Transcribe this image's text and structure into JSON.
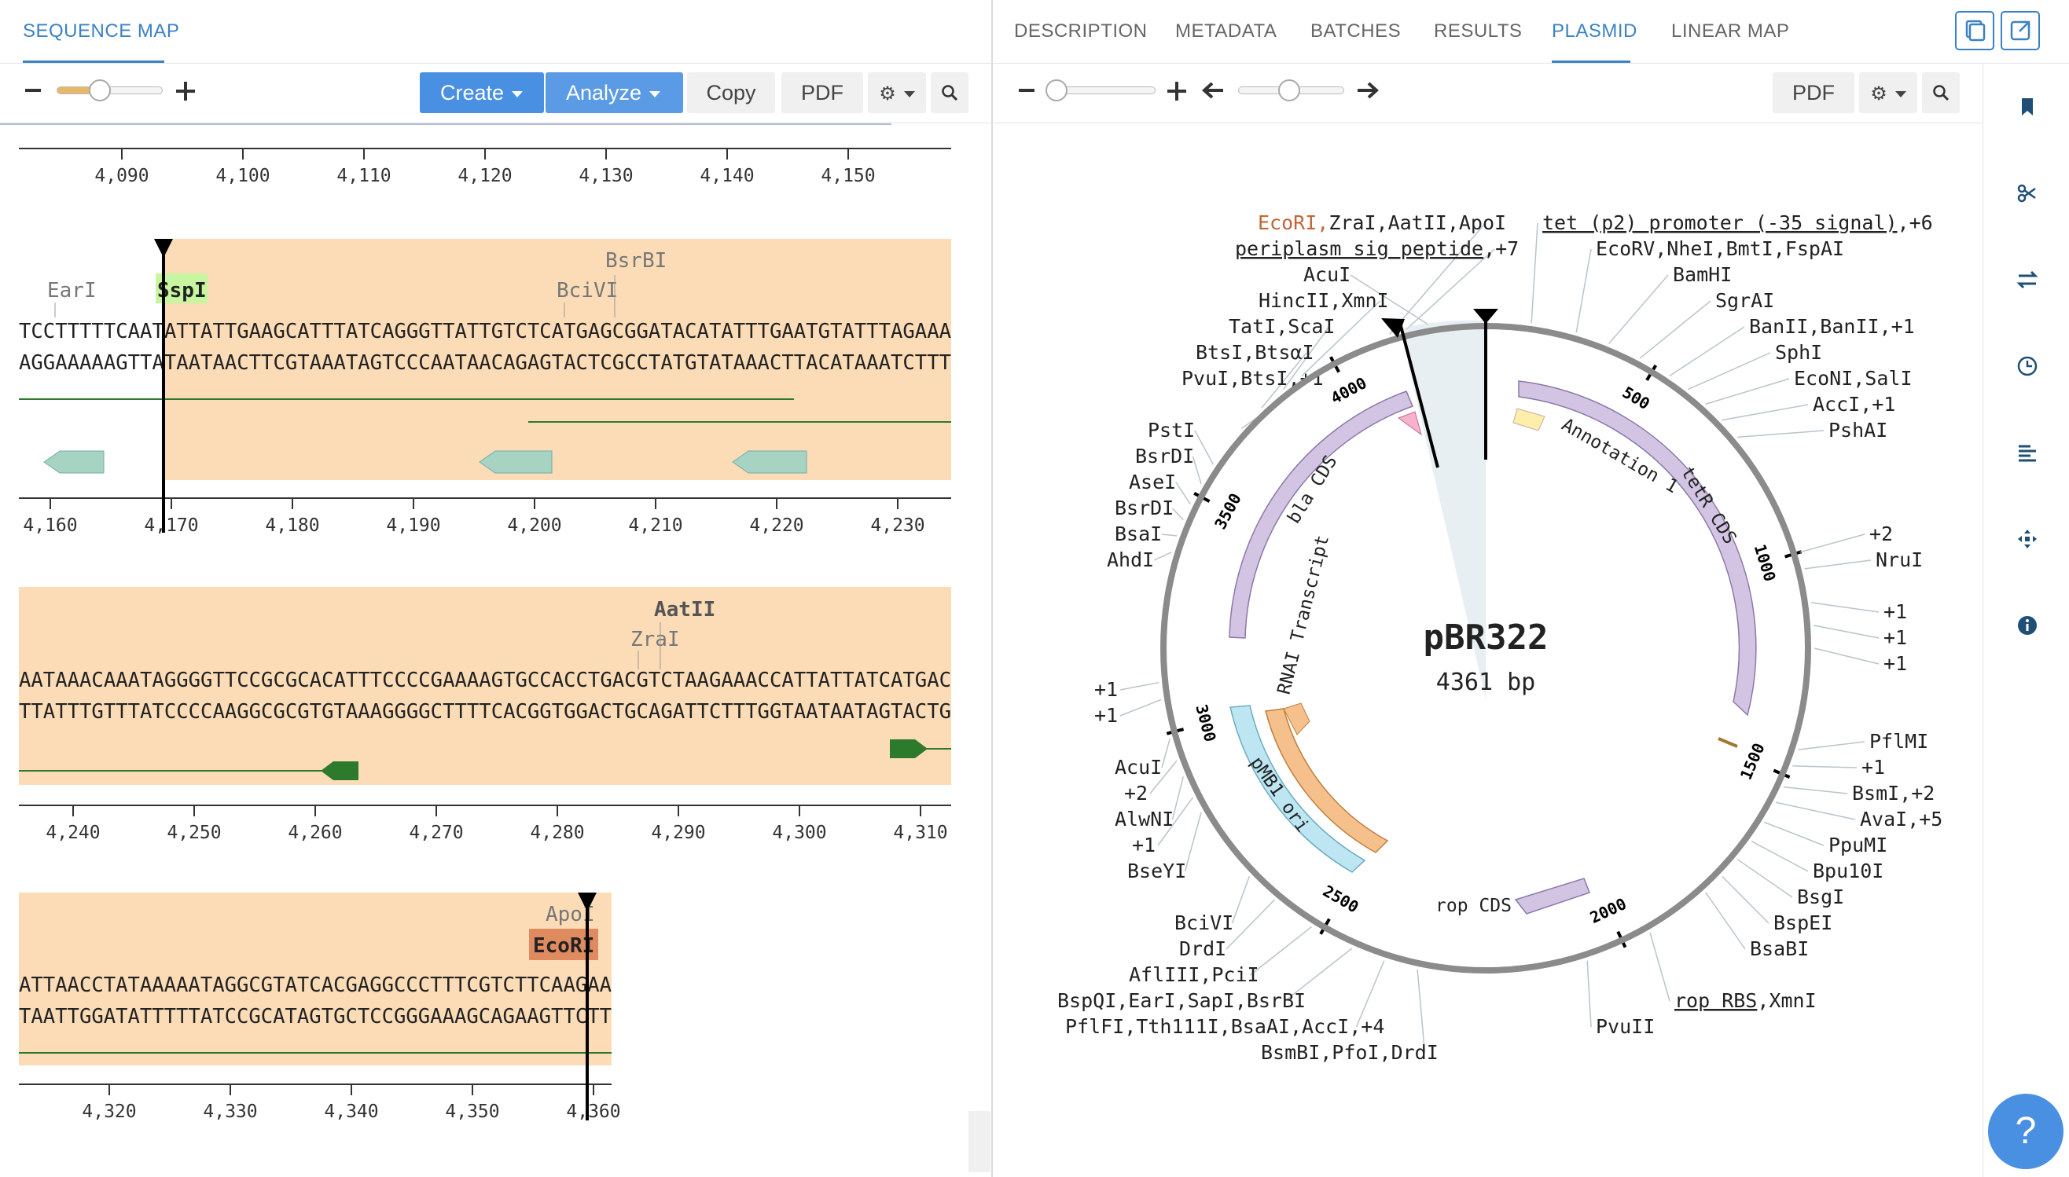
{
  "left_panel": {
    "tab": "SEQUENCE MAP",
    "toolbar": {
      "create": "Create",
      "analyze": "Analyze",
      "copy": "Copy",
      "pdf": "PDF"
    },
    "ticks_row1": [
      "4,090",
      "4,100",
      "4,110",
      "4,120",
      "4,130",
      "4,140",
      "4,150"
    ],
    "ticks_row2": [
      "4,160",
      "4,170",
      "4,180",
      "4,190",
      "4,200",
      "4,210",
      "4,220",
      "4,230"
    ],
    "ticks_row3": [
      "4,240",
      "4,250",
      "4,260",
      "4,270",
      "4,280",
      "4,290",
      "4,300",
      "4,310"
    ],
    "ticks_row4": [
      "4,320",
      "4,330",
      "4,340",
      "4,350",
      "4,360"
    ],
    "row2": {
      "top": "TCCTTTTTCAATATTATTGAAGCATTTATCAGGGTTATTGTCTCATGAGCGGATACATATTTGAATGTATTTAGAAA",
      "bottom": "AGGAAAAAGTTATAATAACTTCGTAAATAGTCCCAATAACAGAGTACTCGCCTATGTATAAACTTACATAAATCTTT",
      "enzymes": [
        "EarI",
        "SspI",
        "BciVI",
        "BsrBI"
      ]
    },
    "row3": {
      "top": "AATAAACAAATAGGGGTTCCGCGCACATTTCCCCGAAAAGTGCCACCTGACGTCTAAGAAACCATTATTATCATGAC",
      "bottom": "TTATTTGTTTATCCCCAAGGCGCGTGTAAAGGGGCTTTTCACGGTGGACTGCAGATTCTTTGGTAATAATAGTACTG",
      "enzymes": [
        "AatII",
        "ZraI"
      ]
    },
    "row4": {
      "top": "ATTAACCTATAAAAATAGGCGTATCACGAGGCCCTTTCGTCTTCAAGAA",
      "bottom": "TAATTGGATATTTTTATCCGCATAGTGCTCCGGGAAAGCAGAAGTTCTT",
      "enzymes": [
        "ApoI",
        "EcoRI"
      ]
    }
  },
  "right_panel": {
    "tabs": [
      "DESCRIPTION",
      "METADATA",
      "BATCHES",
      "RESULTS",
      "PLASMID",
      "LINEAR MAP"
    ],
    "active_tab": "PLASMID",
    "pdf": "PDF",
    "plasmid": {
      "name": "pBR322",
      "length": "4361 bp"
    },
    "features": [
      "bla CDS",
      "tetR CDS",
      "Annotation 1",
      "RNAI Transcript",
      "pMB1 ori",
      "rop CDS"
    ],
    "scale_ticks": [
      "4000",
      "500",
      "3500",
      "1000",
      "3000",
      "1500",
      "2500",
      "2000"
    ],
    "labels_left": [
      {
        "t": "EcoRI,",
        "t2": "ZraI,AatII,ApoI"
      },
      {
        "t": "periplasm sig peptide",
        "t2": ",+7"
      },
      {
        "t": "AcuI"
      },
      {
        "t": "HincII,XmnI"
      },
      {
        "t": "TatI,ScaI"
      },
      {
        "t": "BtsI,BtsαI"
      },
      {
        "t": "PvuI,BtsI,+1"
      },
      {
        "t": "PstI"
      },
      {
        "t": "BsrDI"
      },
      {
        "t": "AseI"
      },
      {
        "t": "BsrDI"
      },
      {
        "t": "BsaI"
      },
      {
        "t": "AhdI"
      },
      {
        "t": "+1"
      },
      {
        "t": "+1"
      },
      {
        "t": "AcuI"
      },
      {
        "t": "+2"
      },
      {
        "t": "AlwNI"
      },
      {
        "t": "+1"
      },
      {
        "t": "BseYI"
      },
      {
        "t": "BciVI"
      },
      {
        "t": "DrdI"
      },
      {
        "t": "AflIII,PciI"
      },
      {
        "t": "BspQI,EarI,SapI,BsrBI"
      },
      {
        "t": "PflFI,Tth111I,BsaAI,AccI,+4"
      },
      {
        "t": "BsmBI,PfoI,DrdI"
      }
    ],
    "labels_right": [
      {
        "t": "tet (p2) promoter (-35 signal)",
        "t2": ",+6"
      },
      {
        "t": "EcoRV,NheI,BmtI,FspAI"
      },
      {
        "t": "BamHI"
      },
      {
        "t": "SgrAI"
      },
      {
        "t": "BanII,BanII,+1"
      },
      {
        "t": "SphI"
      },
      {
        "t": "EcoNI,SalI"
      },
      {
        "t": "AccI,+1"
      },
      {
        "t": "PshAI"
      },
      {
        "t": "+2"
      },
      {
        "t": "NruI"
      },
      {
        "t": "+1"
      },
      {
        "t": "+1"
      },
      {
        "t": "+1"
      },
      {
        "t": "PflMI"
      },
      {
        "t": "+1"
      },
      {
        "t": "BsmI,+2"
      },
      {
        "t": "AvaI,+5"
      },
      {
        "t": "PpuMI"
      },
      {
        "t": "Bpu10I"
      },
      {
        "t": "BsgI"
      },
      {
        "t": "BspEI"
      },
      {
        "t": "BsaBI"
      },
      {
        "t": "rop RBS",
        "t2": ",XmnI"
      },
      {
        "t": "PvuII"
      }
    ]
  },
  "help": "?"
}
